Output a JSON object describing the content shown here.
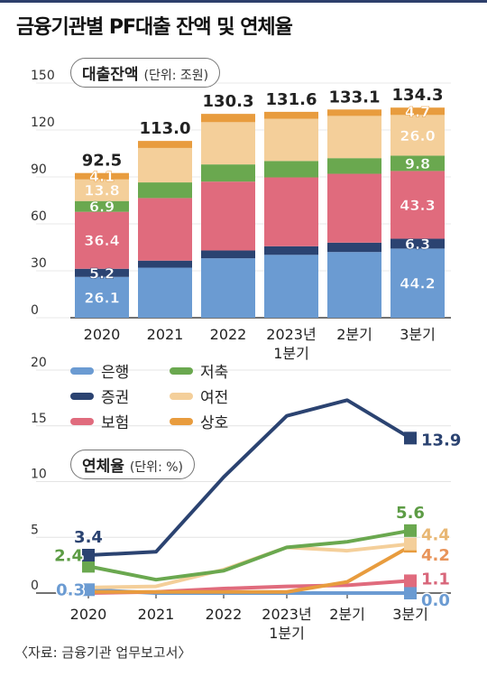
{
  "title": "금융기관별 PF대출 잔액 및 연체율",
  "source": "〈자료: 금융기관 업무보고서〉",
  "colors": {
    "은행": "#6b9bd2",
    "증권": "#2b4371",
    "보험": "#e06b7d",
    "저축": "#6aa84f",
    "여전": "#f4cf9a",
    "상호": "#e89c3e"
  },
  "legend": [
    {
      "label": "은행",
      "key": "은행"
    },
    {
      "label": "저축",
      "key": "저축"
    },
    {
      "label": "증권",
      "key": "증권"
    },
    {
      "label": "여전",
      "key": "여전"
    },
    {
      "label": "보험",
      "key": "보험"
    },
    {
      "label": "상호",
      "key": "상호"
    }
  ],
  "chart_data": [
    {
      "type": "bar",
      "stacked": true,
      "title": "대출잔액",
      "unit": "(단위: 조원)",
      "categories": [
        "2020",
        "2021",
        "2022",
        "2023년\n1분기",
        "2분기",
        "3분기"
      ],
      "ylim": [
        0,
        150
      ],
      "yticks": [
        "0",
        "30",
        "60",
        "90",
        "120",
        "150"
      ],
      "totals": [
        "92.5",
        "113.0",
        "130.3",
        "131.6",
        "133.1",
        "134.3"
      ],
      "series": [
        {
          "name": "은행",
          "values": [
            26.1,
            32.0,
            38.0,
            40.2,
            42.0,
            44.2
          ],
          "labels": [
            "26.1",
            "",
            "",
            "",
            "",
            "44.2"
          ]
        },
        {
          "name": "증권",
          "values": [
            5.2,
            4.5,
            5.0,
            5.5,
            6.0,
            6.3
          ],
          "labels": [
            "5.2",
            "",
            "",
            "",
            "",
            "6.3"
          ]
        },
        {
          "name": "보험",
          "values": [
            36.4,
            40.0,
            44.0,
            44.0,
            44.0,
            43.3
          ],
          "labels": [
            "36.4",
            "",
            "",
            "",
            "",
            "43.3"
          ]
        },
        {
          "name": "저축",
          "values": [
            6.9,
            10.0,
            11.0,
            10.5,
            10.0,
            9.8
          ],
          "labels": [
            "6.9",
            "",
            "",
            "",
            "",
            "9.8"
          ]
        },
        {
          "name": "여전",
          "values": [
            13.8,
            22.0,
            27.0,
            27.0,
            27.0,
            26.0
          ],
          "labels": [
            "13.8",
            "",
            "",
            "",
            "",
            "26.0"
          ]
        },
        {
          "name": "상호",
          "values": [
            4.1,
            4.5,
            5.3,
            4.4,
            4.1,
            4.7
          ],
          "labels": [
            "4.1",
            "",
            "",
            "",
            "",
            "4.7"
          ]
        }
      ]
    },
    {
      "type": "line",
      "title": "연체율",
      "unit": "(단위: %)",
      "categories": [
        "2020",
        "2021",
        "2022",
        "2023년\n1분기",
        "2분기",
        "3분기"
      ],
      "ylim": [
        0,
        20
      ],
      "yticks": [
        "0",
        "5",
        "10",
        "15",
        "20"
      ],
      "series": [
        {
          "name": "증권",
          "values": [
            3.4,
            3.7,
            10.4,
            15.9,
            17.3,
            13.9
          ],
          "start_label": "3.4",
          "end_label": "13.9"
        },
        {
          "name": "저축",
          "values": [
            2.4,
            1.2,
            2.0,
            4.1,
            4.6,
            5.6
          ],
          "start_label": "2.4",
          "end_label": "5.6"
        },
        {
          "name": "여전",
          "values": [
            0.5,
            0.6,
            2.1,
            4.1,
            3.8,
            4.4
          ],
          "start_label": "",
          "end_label": "4.4"
        },
        {
          "name": "상호",
          "values": [
            0.1,
            0.1,
            0.1,
            0.1,
            1.0,
            4.2
          ],
          "start_label": "",
          "end_label": "4.2"
        },
        {
          "name": "보험",
          "values": [
            0.0,
            0.1,
            0.4,
            0.6,
            0.7,
            1.1
          ],
          "start_label": "",
          "end_label": "1.1"
        },
        {
          "name": "은행",
          "values": [
            0.3,
            0.0,
            0.0,
            0.0,
            0.0,
            0.0
          ],
          "start_label": "0.3",
          "end_label": "0.0"
        }
      ]
    }
  ]
}
